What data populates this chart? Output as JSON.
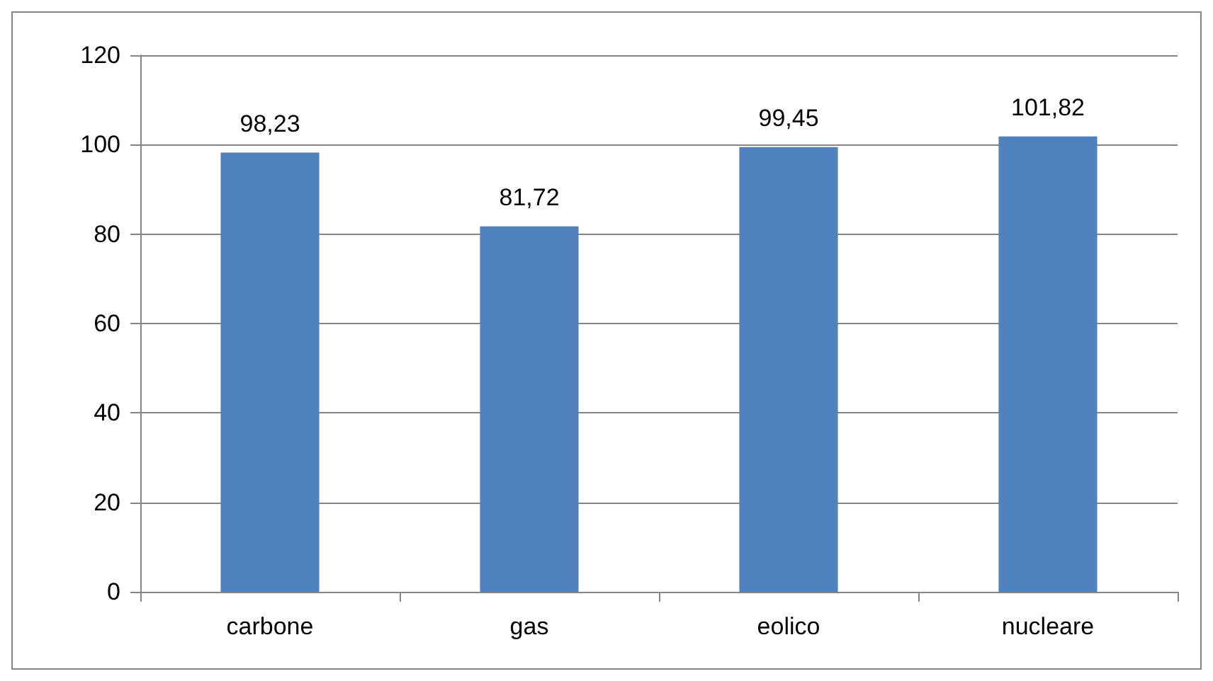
{
  "chart_data": {
    "type": "bar",
    "categories": [
      "carbone",
      "gas",
      "eolico",
      "nucleare"
    ],
    "values": [
      98.23,
      81.72,
      99.45,
      101.82
    ],
    "value_labels": [
      "98,23",
      "81,72",
      "99,45",
      "101,82"
    ],
    "color": "#4f81bd",
    "ylim": [
      0,
      120
    ],
    "yticks": [
      0,
      20,
      40,
      60,
      80,
      100,
      120
    ],
    "grid": "y"
  }
}
